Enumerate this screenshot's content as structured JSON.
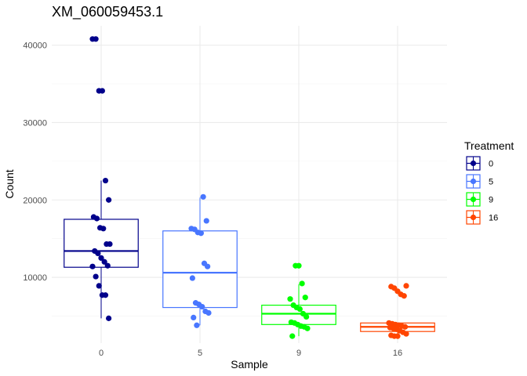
{
  "chart_data": {
    "type": "box",
    "title": "XM_060059453.1",
    "xlabel": "Sample",
    "ylabel": "Count",
    "ylim": [
      1500,
      42500
    ],
    "yticks": [
      10000,
      20000,
      30000,
      40000
    ],
    "grid": true,
    "legend": {
      "title": "Treatment",
      "position": "right"
    },
    "categories": [
      "0",
      "5",
      "9",
      "16"
    ],
    "series": [
      {
        "name": "0",
        "color": "#00008B",
        "box": {
          "whisker_low": 4700,
          "q1": 11300,
          "median": 13400,
          "q3": 17500,
          "whisker_high": 22500
        },
        "points": [
          40800,
          40800,
          34100,
          34100,
          22500,
          20000,
          17800,
          17600,
          16400,
          16300,
          14300,
          14300,
          13400,
          13100,
          12500,
          12000,
          11500,
          11400,
          10100,
          8900,
          7700,
          7700,
          4700
        ]
      },
      {
        "name": "5",
        "color": "#4876FF",
        "box": {
          "whisker_low": 3800,
          "q1": 6100,
          "median": 10600,
          "q3": 16000,
          "whisker_high": 20300
        },
        "points": [
          20400,
          17300,
          16300,
          16200,
          15800,
          15700,
          11800,
          11400,
          9900,
          6700,
          6500,
          6200,
          5600,
          5400,
          4800,
          3800
        ]
      },
      {
        "name": "9",
        "color": "#00FF00",
        "box": {
          "whisker_low": 2400,
          "q1": 3900,
          "median": 5300,
          "q3": 6400,
          "whisker_high": 9100
        },
        "points": [
          11500,
          11500,
          9200,
          7400,
          7200,
          6400,
          6100,
          5900,
          5300,
          4900,
          4200,
          4100,
          3900,
          3700,
          3600,
          3400,
          2400
        ]
      },
      {
        "name": "16",
        "color": "#FF4500",
        "box": {
          "whisker_low": 2400,
          "q1": 3000,
          "median": 3600,
          "q3": 4100,
          "whisker_high": 4100
        },
        "points": [
          8900,
          8800,
          8600,
          8200,
          7800,
          7600,
          4100,
          4000,
          3900,
          3800,
          3700,
          3600,
          3500,
          3400,
          3300,
          3100,
          2900,
          2700,
          2500,
          2400,
          2400
        ]
      }
    ]
  }
}
